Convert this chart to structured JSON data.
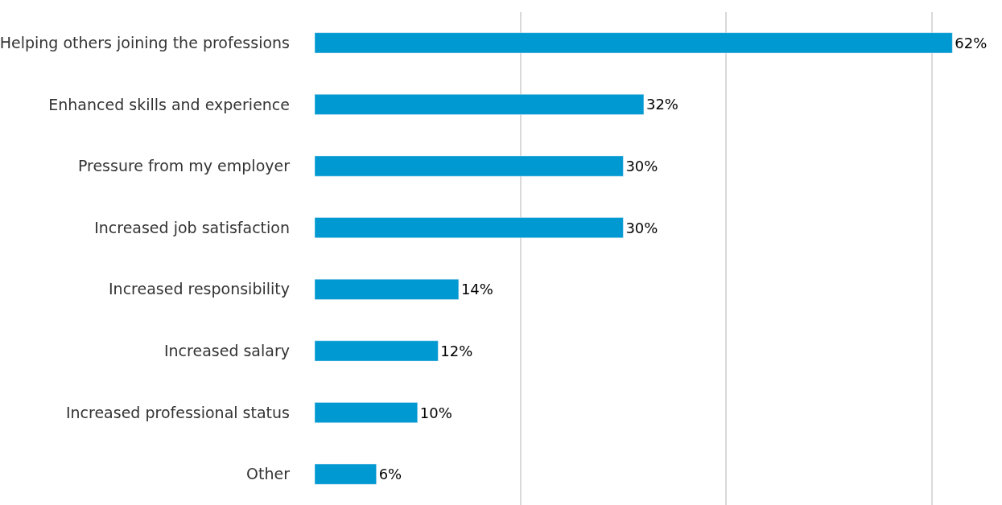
{
  "chart_data": {
    "type": "bar",
    "orientation": "horizontal",
    "categories": [
      "Helping others joining the professions",
      "Enhanced skills and experience",
      "Pressure from my employer",
      "Increased job satisfaction",
      "Increased responsibility",
      "Increased salary",
      "Increased professional status",
      "Other"
    ],
    "values": [
      62,
      32,
      30,
      30,
      14,
      12,
      10,
      6
    ],
    "value_labels": [
      "62%",
      "32%",
      "30%",
      "30%",
      "14%",
      "12%",
      "10%",
      "6%"
    ],
    "color": "#0099d1",
    "grid": "x",
    "tick_labels": "y",
    "legend": false
  }
}
